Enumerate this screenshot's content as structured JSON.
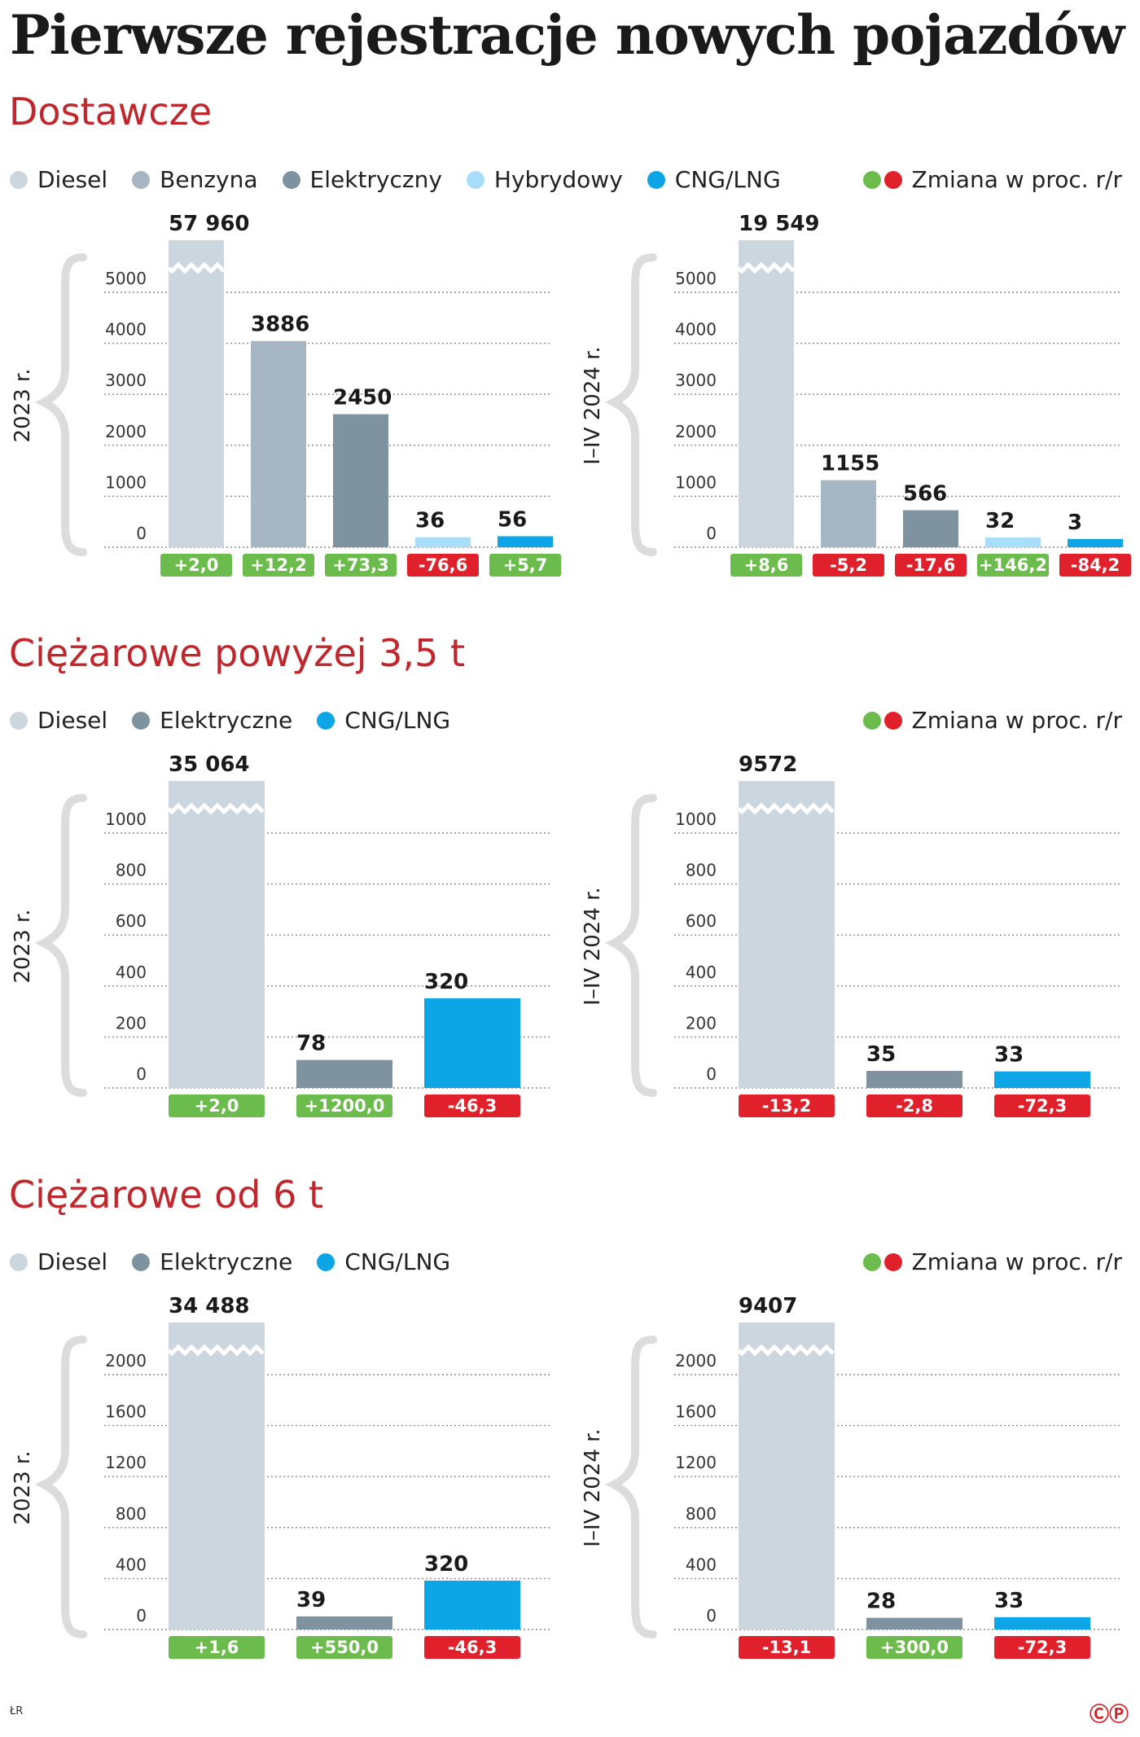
{
  "title": "Pierwsze rejestracje nowych pojazdów",
  "change_legend_label": "Zmiana w proc. r/r",
  "source": "ŁR",
  "logo": "ⒸⓅ",
  "colors": {
    "Diesel": "#ccd6de",
    "Benzyna": "#a6b6c2",
    "Elektryczny": "#7e939f",
    "Hybrydowy": "#a9defa",
    "CNG/LNG": "#0ea5e6",
    "positive": "#6cbb4d",
    "negative": "#e0212b",
    "section": "#c0272d"
  },
  "sections": [
    {
      "title": "Dostawcze",
      "legend": [
        {
          "label": "Diesel",
          "color": "#ccd6de"
        },
        {
          "label": "Benzyna",
          "color": "#a6b6c2"
        },
        {
          "label": "Elektryczny",
          "color": "#7e939f"
        },
        {
          "label": "Hybrydowy",
          "color": "#a9defa"
        },
        {
          "label": "CNG/LNG",
          "color": "#0ea5e6"
        }
      ]
    },
    {
      "title": "Ciężarowe powyżej 3,5 t",
      "legend": [
        {
          "label": "Diesel",
          "color": "#ccd6de"
        },
        {
          "label": "Elektryczne",
          "color": "#7e939f"
        },
        {
          "label": "CNG/LNG",
          "color": "#0ea5e6"
        }
      ]
    },
    {
      "title": "Ciężarowe od 6 t",
      "legend": [
        {
          "label": "Diesel",
          "color": "#ccd6de"
        },
        {
          "label": "Elektryczne",
          "color": "#7e939f"
        },
        {
          "label": "CNG/LNG",
          "color": "#0ea5e6"
        }
      ]
    }
  ],
  "chart_data": [
    {
      "type": "bar",
      "section": "Dostawcze",
      "period": "2023 r.",
      "categories": [
        "Diesel",
        "Benzyna",
        "Elektryczny",
        "Hybrydowy",
        "CNG/LNG"
      ],
      "values": [
        57960,
        3886,
        2450,
        36,
        56
      ],
      "labels": [
        "57 960",
        "3886",
        "2450",
        "36",
        "56"
      ],
      "changes": [
        "+2,0",
        "+12,2",
        "+73,3",
        "-76,6",
        "+5,7"
      ],
      "ticks": [
        0,
        1000,
        2000,
        3000,
        4000,
        5000
      ],
      "ylim": [
        0,
        5000
      ],
      "axis_break": true
    },
    {
      "type": "bar",
      "section": "Dostawcze",
      "period": "I–IV 2024 r.",
      "categories": [
        "Diesel",
        "Benzyna",
        "Elektryczny",
        "Hybrydowy",
        "CNG/LNG"
      ],
      "values": [
        19549,
        1155,
        566,
        32,
        3
      ],
      "labels": [
        "19 549",
        "1155",
        "566",
        "32",
        "3"
      ],
      "changes": [
        "+8,6",
        "-5,2",
        "-17,6",
        "+146,2",
        "-84,2"
      ],
      "ticks": [
        0,
        1000,
        2000,
        3000,
        4000,
        5000
      ],
      "ylim": [
        0,
        5000
      ],
      "axis_break": true
    },
    {
      "type": "bar",
      "section": "Ciężarowe powyżej 3,5 t",
      "period": "2023 r.",
      "categories": [
        "Diesel",
        "Elektryczne",
        "CNG/LNG"
      ],
      "values": [
        35064,
        78,
        320
      ],
      "labels": [
        "35 064",
        "78",
        "320"
      ],
      "changes": [
        "+2,0",
        "+1200,0",
        "-46,3"
      ],
      "ticks": [
        0,
        200,
        400,
        600,
        800,
        1000
      ],
      "ylim": [
        0,
        1000
      ],
      "axis_break": true
    },
    {
      "type": "bar",
      "section": "Ciężarowe powyżej 3,5 t",
      "period": "I–IV 2024 r.",
      "categories": [
        "Diesel",
        "Elektryczne",
        "CNG/LNG"
      ],
      "values": [
        9572,
        35,
        33
      ],
      "labels": [
        "9572",
        "35",
        "33"
      ],
      "changes": [
        "-13,2",
        "-2,8",
        "-72,3"
      ],
      "ticks": [
        0,
        200,
        400,
        600,
        800,
        1000
      ],
      "ylim": [
        0,
        1000
      ],
      "axis_break": true
    },
    {
      "type": "bar",
      "section": "Ciężarowe od 6 t",
      "period": "2023 r.",
      "categories": [
        "Diesel",
        "Elektryczne",
        "CNG/LNG"
      ],
      "values": [
        34488,
        39,
        320
      ],
      "labels": [
        "34 488",
        "39",
        "320"
      ],
      "changes": [
        "+1,6",
        "+550,0",
        "-46,3"
      ],
      "ticks": [
        0,
        400,
        800,
        1200,
        1600,
        2000
      ],
      "ylim": [
        0,
        2000
      ],
      "axis_break": true
    },
    {
      "type": "bar",
      "section": "Ciężarowe od 6 t",
      "period": "I–IV 2024 r.",
      "categories": [
        "Diesel",
        "Elektryczne",
        "CNG/LNG"
      ],
      "values": [
        9407,
        28,
        33
      ],
      "labels": [
        "9407",
        "28",
        "33"
      ],
      "changes": [
        "-13,1",
        "+300,0",
        "-72,3"
      ],
      "ticks": [
        0,
        400,
        800,
        1200,
        1600,
        2000
      ],
      "ylim": [
        0,
        2000
      ],
      "axis_break": true
    }
  ]
}
